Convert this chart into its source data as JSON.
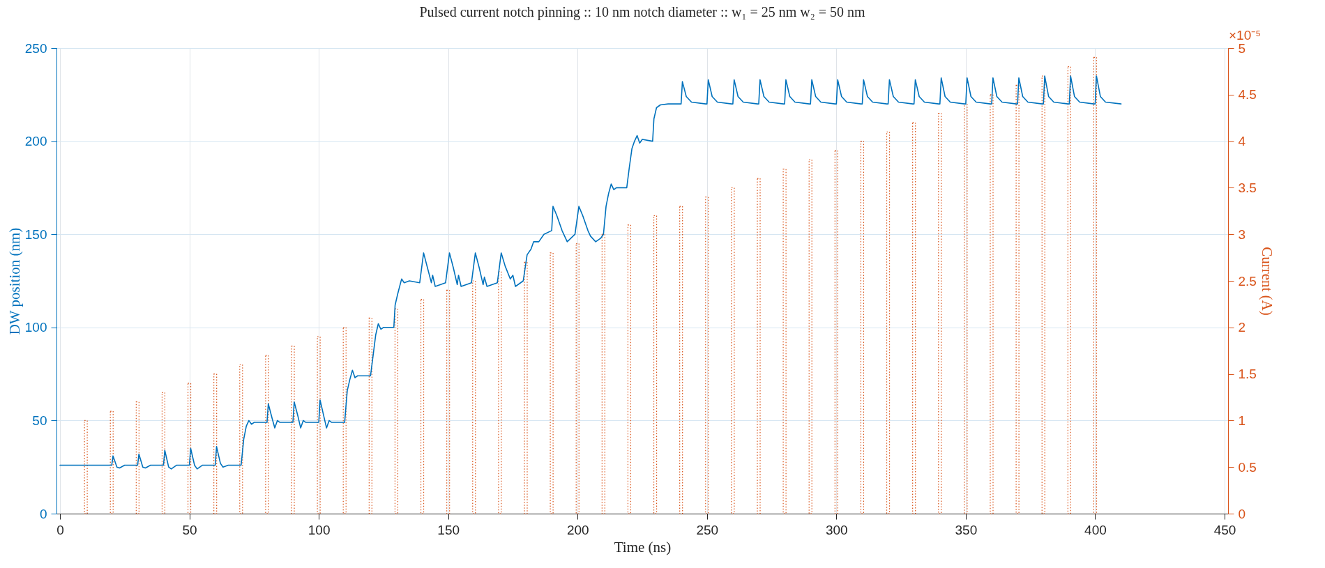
{
  "chart_data": {
    "type": "line",
    "title": "Pulsed current notch pinning :: 10 nm notch diameter :: w₁ = 25 nm w₂ = 50 nm",
    "xlabel": "Time (ns)",
    "ylabel": "DW position (nm)",
    "y2label": "Current (A)",
    "annotations": [
      "×10⁻⁵"
    ],
    "xlim": [
      0,
      450
    ],
    "xticks": [
      0,
      50,
      100,
      150,
      200,
      250,
      300,
      350,
      400,
      450
    ],
    "ylim": [
      0,
      250
    ],
    "yticks": [
      0,
      50,
      100,
      150,
      200,
      250
    ],
    "y2lim": [
      0,
      5
    ],
    "y2ticks": [
      0,
      0.5,
      1,
      1.5,
      2,
      2.5,
      3,
      3.5,
      4,
      4.5,
      5
    ],
    "grid": true,
    "line_style": "solid",
    "series": [
      {
        "type": "bar",
        "axis": "y2",
        "color": "#d95319",
        "line_style": "dotted",
        "x": [
          10,
          20,
          30,
          40,
          50,
          60,
          70,
          80,
          90,
          100,
          110,
          120,
          130,
          140,
          150,
          160,
          170,
          180,
          190,
          200,
          210,
          220,
          230,
          240,
          250,
          260,
          270,
          280,
          290,
          300,
          310,
          320,
          330,
          340,
          350,
          360,
          370,
          380,
          390,
          400
        ],
        "values": [
          1.0,
          1.1,
          1.2,
          1.3,
          1.4,
          1.5,
          1.6,
          1.7,
          1.8,
          1.9,
          2.0,
          2.1,
          2.2,
          2.3,
          2.4,
          2.5,
          2.6,
          2.7,
          2.8,
          2.9,
          3.0,
          3.1,
          3.2,
          3.3,
          3.4,
          3.5,
          3.6,
          3.7,
          3.8,
          3.9,
          4.0,
          4.1,
          4.2,
          4.3,
          4.4,
          4.5,
          4.6,
          4.7,
          4.8,
          4.9
        ]
      },
      {
        "axis": "y",
        "color": "#0072bd",
        "x": [
          0,
          20,
          20.5,
          22,
          23,
          25,
          30,
          30.5,
          32,
          33,
          35,
          40,
          40.5,
          42,
          43,
          45,
          50,
          50.5,
          52,
          53,
          55,
          60,
          60.5,
          62,
          63,
          65,
          70,
          71,
          72,
          73,
          74,
          75,
          80,
          80.5,
          82,
          83,
          84,
          85,
          90,
          90.5,
          92,
          93,
          94,
          95,
          100,
          100.5,
          102,
          103,
          104,
          105,
          110,
          111,
          112,
          113,
          114,
          115,
          120,
          121,
          122,
          123,
          124,
          125,
          129,
          129.5,
          130.5,
          132,
          133,
          135,
          139,
          140.5,
          142,
          143.5,
          144,
          145,
          149,
          150.5,
          152,
          153.5,
          154,
          155,
          159,
          160.5,
          162,
          163.5,
          164,
          165,
          169,
          170.5,
          172,
          174,
          175,
          176,
          179,
          180.5,
          182,
          183,
          185,
          187,
          190,
          190.5,
          192,
          194,
          195,
          196,
          199,
          200.5,
          202,
          204,
          205,
          207,
          209,
          210,
          211,
          212,
          213,
          214,
          215,
          219,
          220,
          221,
          222,
          223,
          224,
          225,
          229,
          229.5,
          230.5,
          232,
          235,
          240,
          240.5,
          242,
          244,
          249.5,
          250,
          250.5,
          252,
          254,
          259.5,
          260,
          260.5,
          262,
          264,
          269.5,
          270,
          270.5,
          272,
          274,
          279.5,
          280,
          280.5,
          282,
          284,
          289.5,
          290,
          290.5,
          292,
          294,
          299.5,
          300,
          300.5,
          302,
          304,
          309.5,
          310,
          310.5,
          312,
          314,
          319.5,
          320,
          320.5,
          322,
          324,
          329.5,
          330,
          330.5,
          332,
          334,
          339.5,
          340,
          340.5,
          342,
          344,
          349.5,
          350,
          350.5,
          352,
          354,
          359.5,
          360,
          360.5,
          362,
          364,
          369.5,
          370,
          370.5,
          372,
          374,
          379.5,
          380,
          380.5,
          382,
          384,
          389.5,
          390,
          390.5,
          392,
          394,
          399.5,
          400,
          400.5,
          402,
          404,
          410
        ],
        "values": [
          26,
          26,
          31,
          25,
          24.5,
          26,
          26,
          32,
          25,
          24.5,
          26,
          26,
          34,
          25,
          24,
          26,
          26,
          35,
          26,
          24,
          26,
          26,
          36,
          27,
          25,
          26,
          26,
          40,
          47,
          50,
          48,
          49,
          49,
          59,
          51,
          46,
          50,
          49,
          49,
          60,
          52,
          46,
          50,
          49,
          49,
          61,
          52,
          46,
          50,
          49,
          49,
          66,
          72,
          77,
          73,
          74,
          74,
          85,
          96,
          102,
          99,
          100,
          100,
          112,
          118,
          126,
          124,
          125,
          124,
          140,
          132,
          124,
          128,
          122,
          124,
          140,
          132,
          123,
          128,
          122,
          124,
          140,
          132,
          123,
          127,
          122,
          124,
          140,
          133,
          126,
          128,
          122,
          125,
          139,
          142,
          146,
          146,
          150,
          152,
          165,
          160,
          152,
          149,
          146,
          150,
          165,
          160,
          152,
          149,
          146,
          148,
          150,
          165,
          172,
          177,
          174,
          175,
          175,
          186,
          196,
          200,
          203,
          199,
          201,
          200,
          212,
          218,
          219.5,
          220,
          220,
          232,
          224,
          221,
          220,
          220,
          233,
          224,
          221,
          220,
          220,
          233,
          224,
          221,
          220,
          220,
          233,
          224,
          221,
          220,
          220,
          233,
          224,
          221,
          220,
          220,
          233,
          224,
          221,
          220,
          220,
          233,
          224,
          221,
          220,
          220,
          233,
          224,
          221,
          220,
          220,
          233,
          224,
          221,
          220,
          220,
          233,
          224,
          221,
          220,
          220,
          234,
          224,
          221,
          220,
          220,
          234,
          224,
          221,
          220,
          220,
          234,
          224,
          221,
          220,
          220,
          234,
          224,
          221,
          220,
          220,
          235,
          224,
          221,
          220,
          220,
          235,
          224,
          221,
          220,
          220,
          235,
          224,
          221,
          220
        ]
      }
    ]
  }
}
